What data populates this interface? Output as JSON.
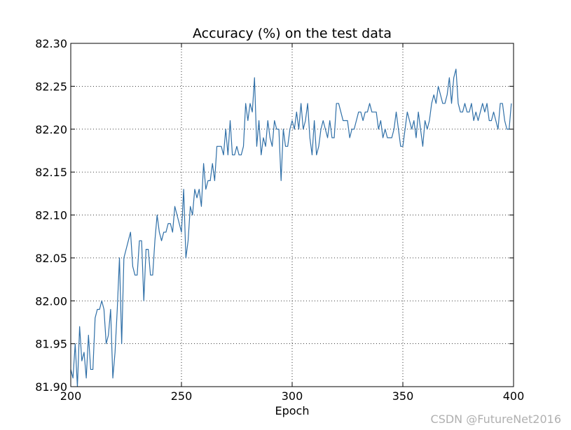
{
  "watermark": "CSDN @FutureNet2016",
  "chart_data": {
    "type": "line",
    "title": "Accuracy (%) on the test data",
    "xlabel": "Epoch",
    "ylabel": "",
    "xlim": [
      200,
      400
    ],
    "ylim": [
      81.9,
      82.3
    ],
    "xticks": [
      200,
      250,
      300,
      350,
      400
    ],
    "yticks": [
      81.9,
      81.95,
      82.0,
      82.05,
      82.1,
      82.15,
      82.2,
      82.25,
      82.3
    ],
    "xtick_labels": [
      "200",
      "250",
      "300",
      "350",
      "400"
    ],
    "ytick_labels": [
      "81.90",
      "81.95",
      "82.00",
      "82.05",
      "82.10",
      "82.15",
      "82.20",
      "82.25",
      "82.30"
    ],
    "grid": true,
    "line_color": "#2f6fa7",
    "x_start": 200,
    "x_step": 1,
    "values": [
      81.92,
      81.91,
      81.95,
      81.9,
      81.97,
      81.93,
      81.94,
      81.91,
      81.96,
      81.92,
      81.92,
      81.98,
      81.99,
      81.99,
      82.0,
      81.99,
      81.95,
      81.96,
      81.99,
      81.91,
      81.94,
      81.99,
      82.05,
      81.95,
      82.05,
      82.06,
      82.07,
      82.08,
      82.04,
      82.03,
      82.03,
      82.07,
      82.07,
      82.0,
      82.06,
      82.06,
      82.03,
      82.03,
      82.07,
      82.1,
      82.08,
      82.07,
      82.08,
      82.08,
      82.09,
      82.09,
      82.08,
      82.11,
      82.1,
      82.09,
      82.08,
      82.13,
      82.05,
      82.07,
      82.11,
      82.1,
      82.13,
      82.12,
      82.13,
      82.11,
      82.16,
      82.13,
      82.14,
      82.14,
      82.16,
      82.14,
      82.18,
      82.18,
      82.18,
      82.17,
      82.2,
      82.17,
      82.21,
      82.17,
      82.17,
      82.18,
      82.17,
      82.17,
      82.18,
      82.23,
      82.21,
      82.23,
      82.22,
      82.26,
      82.18,
      82.21,
      82.17,
      82.19,
      82.18,
      82.21,
      82.19,
      82.18,
      82.21,
      82.2,
      82.2,
      82.14,
      82.2,
      82.18,
      82.18,
      82.2,
      82.21,
      82.2,
      82.22,
      82.2,
      82.23,
      82.2,
      82.21,
      82.23,
      82.19,
      82.17,
      82.21,
      82.17,
      82.18,
      82.2,
      82.21,
      82.2,
      82.19,
      82.21,
      82.19,
      82.19,
      82.23,
      82.23,
      82.22,
      82.21,
      82.21,
      82.21,
      82.19,
      82.2,
      82.2,
      82.21,
      82.22,
      82.22,
      82.21,
      82.22,
      82.22,
      82.23,
      82.22,
      82.22,
      82.22,
      82.2,
      82.21,
      82.19,
      82.2,
      82.19,
      82.19,
      82.19,
      82.2,
      82.22,
      82.2,
      82.18,
      82.18,
      82.2,
      82.22,
      82.21,
      82.2,
      82.21,
      82.19,
      82.22,
      82.2,
      82.18,
      82.21,
      82.2,
      82.21,
      82.23,
      82.24,
      82.23,
      82.25,
      82.24,
      82.23,
      82.23,
      82.24,
      82.26,
      82.23,
      82.26,
      82.27,
      82.23,
      82.22,
      82.22,
      82.23,
      82.22,
      82.22,
      82.23,
      82.21,
      82.22,
      82.21,
      82.22,
      82.23,
      82.22,
      82.23,
      82.21,
      82.21,
      82.22,
      82.21,
      82.2,
      82.23,
      82.23,
      82.21,
      82.2,
      82.2,
      82.23
    ]
  }
}
